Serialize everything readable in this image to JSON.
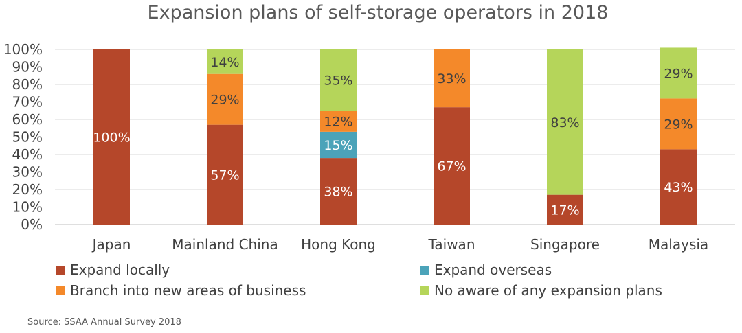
{
  "chart_data": {
    "type": "bar",
    "stacked": true,
    "title": "Expansion plans of self-storage operators in 2018",
    "categories": [
      "Japan",
      "Mainland China",
      "Hong Kong",
      "Taiwan",
      "Singapore",
      "Malaysia"
    ],
    "series": [
      {
        "name": "Expand locally",
        "color": "#B5472A",
        "values": [
          100,
          57,
          38,
          67,
          17,
          43
        ],
        "labels": [
          "100%",
          "57%",
          "38%",
          "67%",
          "17%",
          "43%"
        ],
        "label_color": "#ffffff"
      },
      {
        "name": "Expand overseas",
        "color": "#4BA3B9",
        "values": [
          0,
          0,
          15,
          0,
          0,
          0
        ],
        "labels": [
          "",
          "",
          "15%",
          "",
          "",
          ""
        ],
        "label_color": "#ffffff"
      },
      {
        "name": "Branch into new areas of business",
        "color": "#F4892A",
        "values": [
          0,
          29,
          12,
          33,
          0,
          29
        ],
        "labels": [
          "",
          "29%",
          "12%",
          "33%",
          "",
          "29%"
        ],
        "label_color": "#404040"
      },
      {
        "name": "No aware of any expansion plans",
        "color": "#B5D55A",
        "values": [
          0,
          14,
          35,
          0,
          83,
          29
        ],
        "labels": [
          "",
          "14%",
          "35%",
          "",
          "83%",
          "29%"
        ],
        "label_color": "#404040"
      }
    ],
    "ylim": [
      0,
      100
    ],
    "yticks": [
      "0%",
      "10%",
      "20%",
      "30%",
      "40%",
      "50%",
      "60%",
      "70%",
      "80%",
      "90%",
      "100%"
    ],
    "grid": true,
    "legend_position": "bottom",
    "source": "Source: SSAA Annual Survey 2018"
  }
}
